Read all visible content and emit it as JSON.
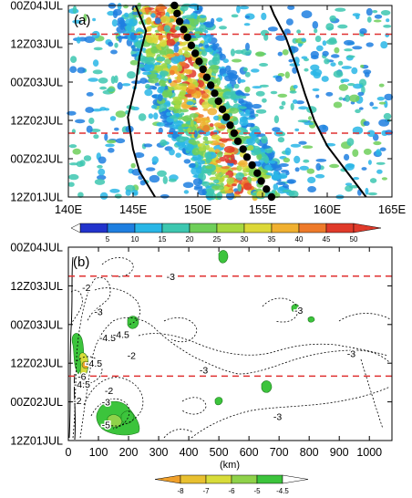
{
  "chart_data": [
    {
      "type": "heatmap",
      "panel_label": "(a)",
      "x_ticks": [
        "140E",
        "145E",
        "150E",
        "155E",
        "160E",
        "165E"
      ],
      "x_range": [
        140,
        165
      ],
      "y_ticks": [
        "12Z01JUL",
        "00Z02JUL",
        "12Z02JUL",
        "00Z03JUL",
        "12Z03JUL",
        "00Z04JUL"
      ],
      "y_range_hours": [
        0,
        60
      ],
      "colorbar": {
        "ticks": [
          "5",
          "10",
          "15",
          "20",
          "25",
          "30",
          "35",
          "40",
          "45",
          "50"
        ],
        "colors": [
          "#2233cc",
          "#1f7fe0",
          "#29b6e6",
          "#3dc7b0",
          "#6fcf5a",
          "#a8d840",
          "#dcd838",
          "#f0b030",
          "#ee7a2a",
          "#e03a2a"
        ]
      },
      "dashed_lines_hours": [
        20,
        51
      ],
      "dashed_line_color": "#e03030",
      "track_dots": [
        [
          155.7,
          0
        ],
        [
          155.3,
          2.5
        ],
        [
          154.9,
          5
        ],
        [
          154.6,
          7.5
        ],
        [
          154.2,
          10
        ],
        [
          153.8,
          12.5
        ],
        [
          153.5,
          15
        ],
        [
          153.1,
          17.5
        ],
        [
          152.8,
          20
        ],
        [
          152.5,
          22.5
        ],
        [
          152.2,
          25
        ],
        [
          151.9,
          27.5
        ],
        [
          151.6,
          30
        ],
        [
          151.3,
          32.5
        ],
        [
          151.0,
          35
        ],
        [
          150.7,
          37.5
        ],
        [
          150.4,
          40
        ],
        [
          150.1,
          42.5
        ],
        [
          149.8,
          45
        ],
        [
          149.5,
          47.5
        ],
        [
          149.2,
          50
        ],
        [
          148.9,
          52.5
        ],
        [
          148.6,
          55
        ],
        [
          148.4,
          57.5
        ],
        [
          148.2,
          60
        ]
      ],
      "boundary_lines": [
        [
          [
            146.7,
            0
          ],
          [
            145.5,
            8
          ],
          [
            145.0,
            15
          ],
          [
            144.6,
            25
          ],
          [
            145.2,
            35
          ],
          [
            145.5,
            44
          ],
          [
            146.0,
            52
          ],
          [
            145.2,
            60
          ]
        ],
        [
          [
            163.0,
            0
          ],
          [
            161.5,
            8
          ],
          [
            160.0,
            16
          ],
          [
            159.0,
            24
          ],
          [
            158.3,
            32
          ],
          [
            157.6,
            41
          ],
          [
            156.8,
            50
          ],
          [
            155.9,
            57
          ],
          [
            155.6,
            60
          ]
        ]
      ]
    },
    {
      "type": "contour",
      "panel_label": "(b)",
      "xlabel": "(km)",
      "x_ticks": [
        "0",
        "100",
        "200",
        "300",
        "400",
        "500",
        "600",
        "700",
        "800",
        "900",
        "1000"
      ],
      "x_range": [
        0,
        1075
      ],
      "y_ticks": [
        "12Z01JUL",
        "00Z02JUL",
        "12Z02JUL",
        "00Z03JUL",
        "12Z03JUL",
        "00Z04JUL"
      ],
      "y_range_hours": [
        0,
        60
      ],
      "colorbar": {
        "ticks": [
          "-8",
          "-7",
          "-6",
          "-5",
          "-4.5"
        ],
        "colors": [
          "#f0a02a",
          "#e8c030",
          "#d8dc3a",
          "#8fd24a",
          "#3cc43c",
          "#ffffff"
        ]
      },
      "dashed_lines_hours": [
        20,
        51
      ],
      "contour_labels": [
        {
          "text": "-3",
          "x": 695,
          "y": 7.5
        },
        {
          "text": "-3",
          "x": 940,
          "y": 27
        },
        {
          "text": "-3",
          "x": 765,
          "y": 40.5
        },
        {
          "text": "-3",
          "x": 340,
          "y": 51
        },
        {
          "text": "-3",
          "x": 450,
          "y": 22
        },
        {
          "text": "-3",
          "x": 125,
          "y": 12
        },
        {
          "text": "-3",
          "x": 100,
          "y": 40
        },
        {
          "text": "-2",
          "x": 135,
          "y": 15.5
        },
        {
          "text": "-2",
          "x": 210,
          "y": 26.5
        },
        {
          "text": "-2",
          "x": 60,
          "y": 47.5
        },
        {
          "text": "-2",
          "x": 30,
          "y": 12.5
        },
        {
          "text": "-4.5",
          "x": 130,
          "y": 32
        },
        {
          "text": "-4.5",
          "x": 85,
          "y": 24
        },
        {
          "text": "-4.5",
          "x": 45,
          "y": 17.5
        },
        {
          "text": "-4.5",
          "x": 175,
          "y": 33
        },
        {
          "text": "-5",
          "x": 125,
          "y": 5
        },
        {
          "text": "-6",
          "x": 45,
          "y": 20
        }
      ]
    }
  ]
}
